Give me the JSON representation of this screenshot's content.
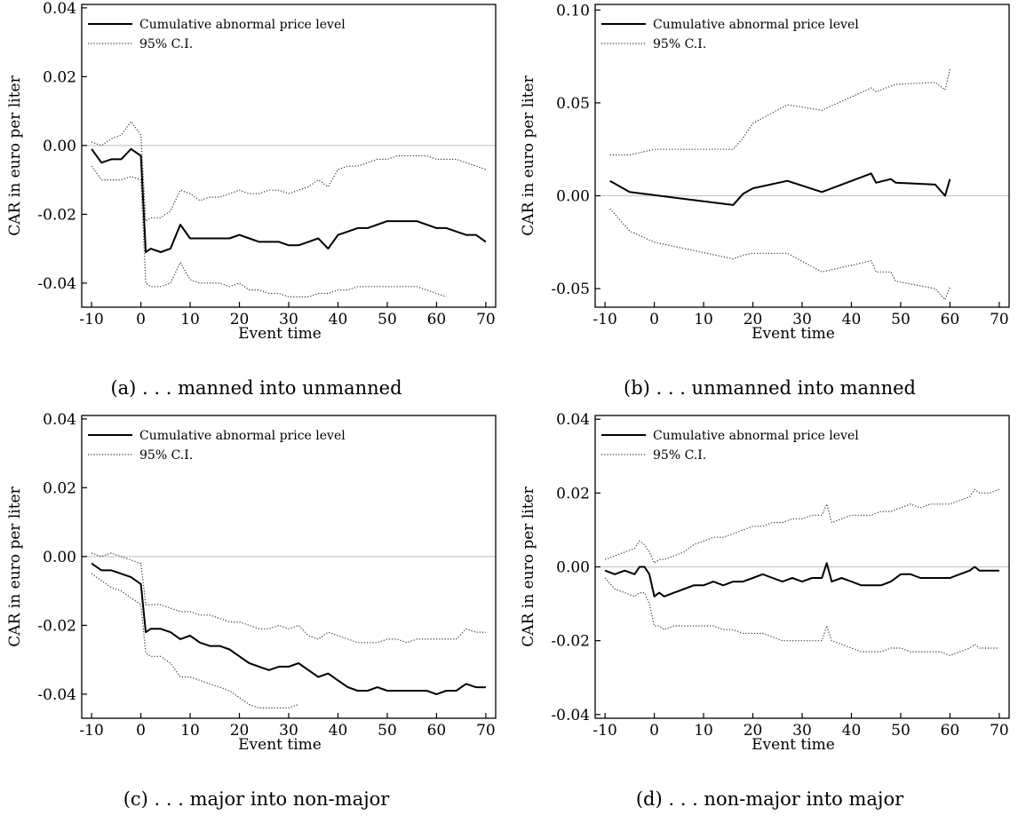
{
  "chart_data": [
    {
      "type": "line",
      "caption": "(a) . . . manned into unmanned",
      "xlabel": "Event time",
      "ylabel": "CAR in euro per liter",
      "xlim": [
        -12,
        72
      ],
      "ylim": [
        -0.047,
        0.041
      ],
      "xticks": [
        -10,
        0,
        10,
        20,
        30,
        40,
        50,
        60,
        70
      ],
      "yticks": [
        -0.04,
        -0.02,
        0.0,
        0.02,
        0.04
      ],
      "ytick_labels": [
        "-0.04",
        "-0.02",
        "0.00",
        "0.02",
        "0.04"
      ],
      "zero_line": true,
      "legend": {
        "position": "top-left",
        "entries": [
          "Cumulative abnormal price level",
          "95% C.I."
        ]
      },
      "series": [
        {
          "name": "Cumulative abnormal price level",
          "style": "solid",
          "x": [
            -10,
            -8,
            -6,
            -4,
            -2,
            0,
            1,
            2,
            4,
            6,
            8,
            10,
            12,
            14,
            16,
            18,
            20,
            22,
            24,
            26,
            28,
            30,
            32,
            34,
            36,
            38,
            40,
            42,
            44,
            46,
            48,
            50,
            52,
            54,
            56,
            58,
            60,
            62,
            64,
            66,
            68,
            70
          ],
          "y": [
            -0.001,
            -0.005,
            -0.004,
            -0.004,
            -0.001,
            -0.003,
            -0.031,
            -0.03,
            -0.031,
            -0.03,
            -0.023,
            -0.027,
            -0.027,
            -0.027,
            -0.027,
            -0.027,
            -0.026,
            -0.027,
            -0.028,
            -0.028,
            -0.028,
            -0.029,
            -0.029,
            -0.028,
            -0.027,
            -0.03,
            -0.026,
            -0.025,
            -0.024,
            -0.024,
            -0.023,
            -0.022,
            -0.022,
            -0.022,
            -0.022,
            -0.023,
            -0.024,
            -0.024,
            -0.025,
            -0.026,
            -0.026,
            -0.028
          ]
        },
        {
          "name": "95% C.I.",
          "style": "dotted",
          "x": [
            -10,
            -8,
            -6,
            -4,
            -2,
            0,
            1,
            2,
            4,
            6,
            8,
            10,
            12,
            14,
            16,
            18,
            20,
            22,
            24,
            26,
            28,
            30,
            32,
            34,
            36,
            38,
            40,
            42,
            44,
            46,
            48,
            50,
            52,
            54,
            56,
            58,
            60,
            62,
            64,
            66,
            68,
            70
          ],
          "y": [
            0.001,
            0.0,
            0.002,
            0.003,
            0.007,
            0.003,
            -0.022,
            -0.021,
            -0.021,
            -0.019,
            -0.013,
            -0.014,
            -0.016,
            -0.015,
            -0.015,
            -0.014,
            -0.013,
            -0.014,
            -0.014,
            -0.013,
            -0.013,
            -0.014,
            -0.013,
            -0.012,
            -0.01,
            -0.012,
            -0.007,
            -0.006,
            -0.006,
            -0.005,
            -0.004,
            -0.004,
            -0.003,
            -0.003,
            -0.003,
            -0.003,
            -0.004,
            -0.004,
            -0.004,
            -0.005,
            -0.006,
            -0.007
          ]
        },
        {
          "name": "95% C.I.",
          "style": "dotted",
          "x": [
            -10,
            -8,
            -6,
            -4,
            -2,
            0,
            1,
            2,
            4,
            6,
            8,
            10,
            12,
            14,
            16,
            18,
            20,
            22,
            24,
            26,
            28,
            30,
            32,
            34,
            36,
            38,
            40,
            42,
            44,
            46,
            48,
            50,
            52,
            54,
            56,
            58,
            60,
            62
          ],
          "y": [
            -0.006,
            -0.01,
            -0.01,
            -0.01,
            -0.009,
            -0.01,
            -0.04,
            -0.041,
            -0.041,
            -0.04,
            -0.034,
            -0.039,
            -0.04,
            -0.04,
            -0.04,
            -0.041,
            -0.04,
            -0.042,
            -0.042,
            -0.043,
            -0.043,
            -0.044,
            -0.044,
            -0.044,
            -0.043,
            -0.043,
            -0.042,
            -0.042,
            -0.041,
            -0.041,
            -0.041,
            -0.041,
            -0.041,
            -0.041,
            -0.041,
            -0.042,
            -0.043,
            -0.044
          ]
        }
      ]
    },
    {
      "type": "line",
      "caption": "(b) . . . unmanned into manned",
      "xlabel": "Event time",
      "ylabel": "CAR in euro per liter",
      "xlim": [
        -12,
        72
      ],
      "ylim": [
        -0.06,
        0.103
      ],
      "xticks": [
        -10,
        0,
        10,
        20,
        30,
        40,
        50,
        60,
        70
      ],
      "yticks": [
        -0.05,
        0.0,
        0.05,
        0.1
      ],
      "ytick_labels": [
        "-0.05",
        "0.00",
        "0.05",
        "0.10"
      ],
      "zero_line": true,
      "legend": {
        "position": "top-left",
        "entries": [
          "Cumulative abnormal price level",
          "95% C.I."
        ]
      },
      "series": [
        {
          "name": "Cumulative abnormal price level",
          "style": "solid",
          "x": [
            -9,
            -5,
            16,
            18,
            20,
            27,
            34,
            44,
            45,
            48,
            49,
            57,
            59,
            60
          ],
          "y": [
            0.008,
            0.002,
            -0.005,
            0.001,
            0.004,
            0.008,
            0.002,
            0.012,
            0.007,
            0.009,
            0.007,
            0.006,
            0.0,
            0.009
          ]
        },
        {
          "name": "95% C.I.",
          "style": "dotted",
          "x": [
            -9,
            -5,
            0,
            16,
            18,
            20,
            27,
            34,
            44,
            45,
            48,
            49,
            57,
            59,
            60
          ],
          "y": [
            0.022,
            0.022,
            0.025,
            0.025,
            0.031,
            0.039,
            0.049,
            0.046,
            0.058,
            0.056,
            0.059,
            0.06,
            0.061,
            0.057,
            0.068
          ]
        },
        {
          "name": "95% C.I.",
          "style": "dotted",
          "x": [
            -9,
            -5,
            0,
            16,
            18,
            20,
            27,
            34,
            44,
            45,
            48,
            49,
            57,
            59,
            60
          ],
          "y": [
            -0.007,
            -0.019,
            -0.025,
            -0.034,
            -0.032,
            -0.031,
            -0.031,
            -0.041,
            -0.035,
            -0.041,
            -0.041,
            -0.046,
            -0.05,
            -0.056,
            -0.049
          ]
        }
      ]
    },
    {
      "type": "line",
      "caption": "(c) . . . major into non-major",
      "xlabel": "Event time",
      "ylabel": "CAR in euro per liter",
      "xlim": [
        -12,
        72
      ],
      "ylim": [
        -0.047,
        0.041
      ],
      "xticks": [
        -10,
        0,
        10,
        20,
        30,
        40,
        50,
        60,
        70
      ],
      "yticks": [
        -0.04,
        -0.02,
        0.0,
        0.02,
        0.04
      ],
      "ytick_labels": [
        "-0.04",
        "-0.02",
        "0.00",
        "0.02",
        "0.04"
      ],
      "zero_line": true,
      "legend": {
        "position": "top-left",
        "entries": [
          "Cumulative abnormal price level",
          "95% C.I."
        ]
      },
      "series": [
        {
          "name": "Cumulative abnormal price level",
          "style": "solid",
          "x": [
            -10,
            -8,
            -6,
            -4,
            -2,
            0,
            1,
            2,
            4,
            6,
            8,
            10,
            12,
            14,
            16,
            18,
            20,
            22,
            24,
            26,
            28,
            30,
            32,
            34,
            36,
            38,
            40,
            42,
            44,
            46,
            48,
            50,
            52,
            54,
            56,
            58,
            60,
            62,
            64,
            66,
            68,
            70
          ],
          "y": [
            -0.002,
            -0.004,
            -0.004,
            -0.005,
            -0.006,
            -0.008,
            -0.022,
            -0.021,
            -0.021,
            -0.022,
            -0.024,
            -0.023,
            -0.025,
            -0.026,
            -0.026,
            -0.027,
            -0.029,
            -0.031,
            -0.032,
            -0.033,
            -0.032,
            -0.032,
            -0.031,
            -0.033,
            -0.035,
            -0.034,
            -0.036,
            -0.038,
            -0.039,
            -0.039,
            -0.038,
            -0.039,
            -0.039,
            -0.039,
            -0.039,
            -0.039,
            -0.04,
            -0.039,
            -0.039,
            -0.037,
            -0.038,
            -0.038
          ]
        },
        {
          "name": "95% C.I.",
          "style": "dotted",
          "x": [
            -10,
            -8,
            -6,
            -4,
            -2,
            0,
            1,
            2,
            4,
            6,
            8,
            10,
            12,
            14,
            16,
            18,
            20,
            22,
            24,
            26,
            28,
            30,
            32,
            34,
            36,
            38,
            40,
            42,
            44,
            46,
            48,
            50,
            52,
            54,
            56,
            58,
            60,
            62,
            64,
            66,
            68,
            70
          ],
          "y": [
            0.001,
            0.0,
            0.001,
            0.0,
            -0.001,
            -0.002,
            -0.014,
            -0.014,
            -0.014,
            -0.015,
            -0.016,
            -0.016,
            -0.017,
            -0.017,
            -0.018,
            -0.019,
            -0.019,
            -0.02,
            -0.021,
            -0.021,
            -0.02,
            -0.021,
            -0.02,
            -0.023,
            -0.024,
            -0.022,
            -0.023,
            -0.024,
            -0.025,
            -0.025,
            -0.025,
            -0.024,
            -0.024,
            -0.025,
            -0.024,
            -0.024,
            -0.024,
            -0.024,
            -0.024,
            -0.021,
            -0.022,
            -0.022
          ]
        },
        {
          "name": "95% C.I.",
          "style": "dotted",
          "x": [
            -10,
            -8,
            -6,
            -4,
            -2,
            0,
            1,
            2,
            4,
            6,
            8,
            10,
            12,
            14,
            16,
            18,
            20,
            22,
            24,
            26,
            28,
            30,
            32
          ],
          "y": [
            -0.005,
            -0.007,
            -0.009,
            -0.01,
            -0.012,
            -0.014,
            -0.028,
            -0.029,
            -0.029,
            -0.031,
            -0.035,
            -0.035,
            -0.036,
            -0.037,
            -0.038,
            -0.039,
            -0.041,
            -0.043,
            -0.044,
            -0.044,
            -0.044,
            -0.044,
            -0.043
          ]
        }
      ]
    },
    {
      "type": "line",
      "caption": "(d) . . . non-major into major",
      "xlabel": "Event time",
      "ylabel": "CAR in euro per liter",
      "xlim": [
        -12,
        72
      ],
      "ylim": [
        -0.041,
        0.041
      ],
      "xticks": [
        -10,
        0,
        10,
        20,
        30,
        40,
        50,
        60,
        70
      ],
      "yticks": [
        -0.04,
        -0.02,
        0.0,
        0.02,
        0.04
      ],
      "ytick_labels": [
        "-0.04",
        "-0.02",
        "0.00",
        "0.02",
        "0.04"
      ],
      "zero_line": true,
      "legend": {
        "position": "top-left",
        "entries": [
          "Cumulative abnormal price level",
          "95% C.I."
        ]
      },
      "series": [
        {
          "name": "Cumulative abnormal price level",
          "style": "solid",
          "x": [
            -10,
            -8,
            -6,
            -4,
            -3,
            -2,
            -1,
            0,
            1,
            2,
            4,
            6,
            8,
            10,
            12,
            14,
            16,
            18,
            20,
            22,
            24,
            26,
            28,
            30,
            32,
            34,
            35,
            36,
            38,
            40,
            42,
            44,
            46,
            48,
            50,
            52,
            54,
            56,
            58,
            60,
            62,
            64,
            65,
            66,
            68,
            70
          ],
          "y": [
            -0.001,
            -0.002,
            -0.001,
            -0.002,
            0.0,
            0.0,
            -0.002,
            -0.008,
            -0.007,
            -0.008,
            -0.007,
            -0.006,
            -0.005,
            -0.005,
            -0.004,
            -0.005,
            -0.004,
            -0.004,
            -0.003,
            -0.002,
            -0.003,
            -0.004,
            -0.003,
            -0.004,
            -0.003,
            -0.003,
            0.001,
            -0.004,
            -0.003,
            -0.004,
            -0.005,
            -0.005,
            -0.005,
            -0.004,
            -0.002,
            -0.002,
            -0.003,
            -0.003,
            -0.003,
            -0.003,
            -0.002,
            -0.001,
            0.0,
            -0.001,
            -0.001,
            -0.001
          ]
        },
        {
          "name": "95% C.I.",
          "style": "dotted",
          "x": [
            -10,
            -8,
            -6,
            -4,
            -3,
            -2,
            -1,
            0,
            1,
            2,
            4,
            6,
            8,
            10,
            12,
            14,
            16,
            18,
            20,
            22,
            24,
            26,
            28,
            30,
            32,
            34,
            35,
            36,
            38,
            40,
            42,
            44,
            46,
            48,
            50,
            52,
            54,
            56,
            58,
            60,
            62,
            64,
            65,
            66,
            68,
            70
          ],
          "y": [
            0.002,
            0.003,
            0.004,
            0.005,
            0.007,
            0.006,
            0.004,
            0.001,
            0.002,
            0.002,
            0.003,
            0.004,
            0.006,
            0.007,
            0.008,
            0.008,
            0.009,
            0.01,
            0.011,
            0.011,
            0.012,
            0.012,
            0.013,
            0.013,
            0.014,
            0.014,
            0.017,
            0.012,
            0.013,
            0.014,
            0.014,
            0.014,
            0.015,
            0.015,
            0.016,
            0.017,
            0.016,
            0.017,
            0.017,
            0.017,
            0.018,
            0.019,
            0.021,
            0.02,
            0.02,
            0.021
          ]
        },
        {
          "name": "95% C.I.",
          "style": "dotted",
          "x": [
            -10,
            -8,
            -6,
            -4,
            -3,
            -2,
            -1,
            0,
            1,
            2,
            4,
            6,
            8,
            10,
            12,
            14,
            16,
            18,
            20,
            22,
            24,
            26,
            28,
            30,
            32,
            34,
            35,
            36,
            38,
            40,
            42,
            44,
            46,
            48,
            50,
            52,
            54,
            56,
            58,
            60,
            62,
            64,
            65,
            66,
            68,
            70
          ],
          "y": [
            -0.003,
            -0.006,
            -0.007,
            -0.008,
            -0.007,
            -0.007,
            -0.01,
            -0.016,
            -0.016,
            -0.017,
            -0.016,
            -0.016,
            -0.016,
            -0.016,
            -0.016,
            -0.017,
            -0.017,
            -0.018,
            -0.018,
            -0.018,
            -0.019,
            -0.02,
            -0.02,
            -0.02,
            -0.02,
            -0.02,
            -0.016,
            -0.02,
            -0.021,
            -0.022,
            -0.023,
            -0.023,
            -0.023,
            -0.022,
            -0.022,
            -0.023,
            -0.023,
            -0.023,
            -0.023,
            -0.024,
            -0.023,
            -0.022,
            -0.021,
            -0.022,
            -0.022,
            -0.022
          ]
        }
      ]
    }
  ]
}
